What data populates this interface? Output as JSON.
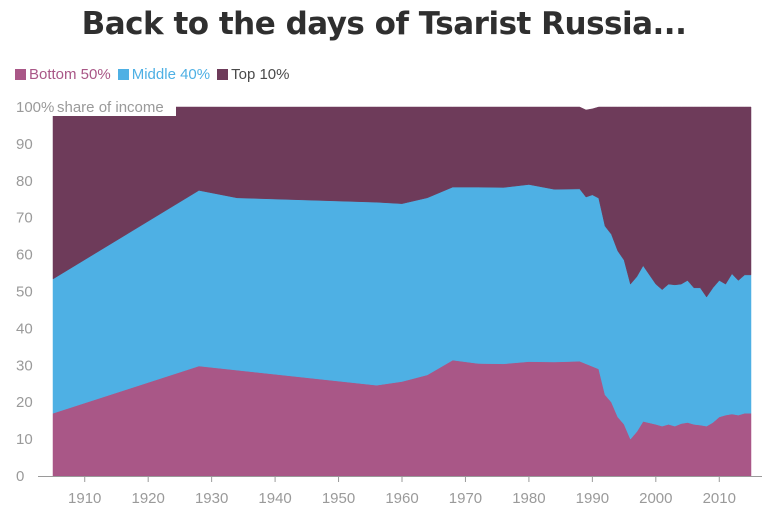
{
  "title": "Back to the days of Tsarist Russia...",
  "chart_data": {
    "type": "area",
    "stacked": true,
    "ylabel": "share of income",
    "ylim": [
      0,
      100
    ],
    "xlim": [
      1904,
      2016
    ],
    "x_ticks": [
      1910,
      1920,
      1930,
      1940,
      1950,
      1960,
      1970,
      1980,
      1990,
      2000,
      2010
    ],
    "y_ticks": [
      0,
      10,
      20,
      30,
      40,
      50,
      60,
      70,
      80,
      90,
      100
    ],
    "legend_position": "top-left",
    "series": [
      {
        "name": "Bottom 50%",
        "color": "#a95787",
        "points": [
          [
            1905,
            17
          ],
          [
            1928,
            29.8
          ],
          [
            1956,
            24.6
          ],
          [
            1960,
            25.6
          ],
          [
            1964,
            27.4
          ],
          [
            1968,
            31.4
          ],
          [
            1972,
            30.5
          ],
          [
            1976,
            30.4
          ],
          [
            1980,
            31
          ],
          [
            1984,
            30.9
          ],
          [
            1988,
            31.1
          ],
          [
            1991,
            29
          ],
          [
            1992,
            22
          ],
          [
            1993,
            20
          ],
          [
            1994,
            16
          ],
          [
            1995,
            14
          ],
          [
            1996,
            10
          ],
          [
            1997,
            12
          ],
          [
            1998,
            14.8
          ],
          [
            2000,
            14
          ],
          [
            2001,
            13.5
          ],
          [
            2002,
            14
          ],
          [
            2003,
            13.5
          ],
          [
            2004,
            14.2
          ],
          [
            2005,
            14.5
          ],
          [
            2006,
            14
          ],
          [
            2007,
            13.8
          ],
          [
            2008,
            13.5
          ],
          [
            2009,
            14.5
          ],
          [
            2010,
            16
          ],
          [
            2011,
            16.5
          ],
          [
            2012,
            16.8
          ],
          [
            2013,
            16.5
          ],
          [
            2014,
            17
          ],
          [
            2015,
            17
          ]
        ]
      },
      {
        "name": "Middle 40%",
        "color": "#4eb0e4",
        "points": [
          [
            1905,
            36.4
          ],
          [
            1928,
            47.6
          ],
          [
            1934,
            46.7
          ],
          [
            1956,
            49.6
          ],
          [
            1960,
            48.2
          ],
          [
            1964,
            48
          ],
          [
            1968,
            46.9
          ],
          [
            1972,
            47.8
          ],
          [
            1976,
            47.8
          ],
          [
            1980,
            48
          ],
          [
            1984,
            46.8
          ],
          [
            1988,
            46.7
          ],
          [
            1989,
            45.2
          ],
          [
            1990,
            46.5
          ],
          [
            1991,
            46.3
          ],
          [
            1992,
            45.7
          ],
          [
            1993,
            45.5
          ],
          [
            1994,
            45
          ],
          [
            1995,
            44.5
          ],
          [
            1996,
            42
          ],
          [
            1997,
            42
          ],
          [
            1998,
            42.2
          ],
          [
            2000,
            38
          ],
          [
            2001,
            37
          ],
          [
            2002,
            38
          ],
          [
            2003,
            38.3
          ],
          [
            2004,
            37.8
          ],
          [
            2005,
            38.5
          ],
          [
            2006,
            37
          ],
          [
            2007,
            37.2
          ],
          [
            2008,
            35
          ],
          [
            2009,
            36.5
          ],
          [
            2010,
            37
          ],
          [
            2011,
            35.5
          ],
          [
            2012,
            38
          ],
          [
            2013,
            36.5
          ],
          [
            2014,
            37.5
          ],
          [
            2015,
            37.5
          ]
        ]
      },
      {
        "name": "Top 10%",
        "color": "#6e3b5a",
        "points": [
          [
            1905,
            46.6
          ],
          [
            1928,
            22.6
          ],
          [
            1934,
            24.6
          ],
          [
            1956,
            25.8
          ],
          [
            1960,
            26.2
          ],
          [
            1964,
            24.6
          ],
          [
            1968,
            21.7
          ],
          [
            1972,
            21.7
          ],
          [
            1976,
            21.8
          ],
          [
            1980,
            21
          ],
          [
            1984,
            22.3
          ],
          [
            1988,
            22.2
          ],
          [
            1989,
            23.6
          ],
          [
            1990,
            23.3
          ],
          [
            1991,
            24.7
          ],
          [
            1992,
            32.3
          ],
          [
            1993,
            34.5
          ],
          [
            1994,
            39
          ],
          [
            1995,
            41.5
          ],
          [
            1996,
            48
          ],
          [
            1997,
            46
          ],
          [
            1998,
            43
          ],
          [
            2000,
            48
          ],
          [
            2001,
            49.5
          ],
          [
            2002,
            48
          ],
          [
            2003,
            48.2
          ],
          [
            2004,
            48
          ],
          [
            2005,
            47
          ],
          [
            2006,
            49
          ],
          [
            2007,
            49
          ],
          [
            2008,
            51.5
          ],
          [
            2009,
            49
          ],
          [
            2010,
            47
          ],
          [
            2011,
            48
          ],
          [
            2012,
            45.2
          ],
          [
            2013,
            47
          ],
          [
            2014,
            45.5
          ],
          [
            2015,
            45.5
          ]
        ]
      }
    ]
  }
}
